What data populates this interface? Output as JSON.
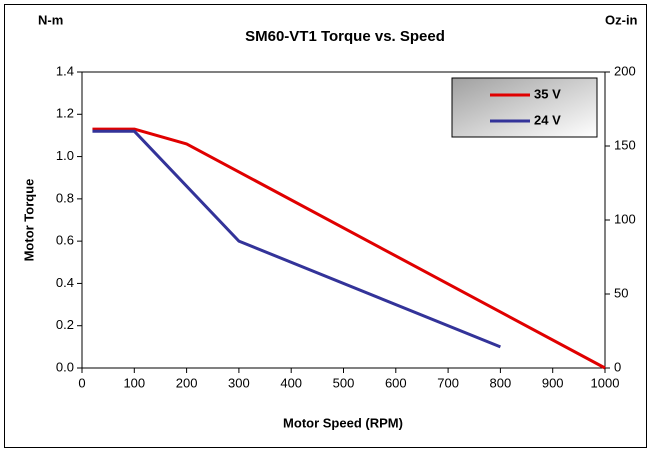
{
  "chart_data": {
    "type": "line",
    "title": "SM60-VT1 Torque vs. Speed",
    "xlabel": "Motor Speed (RPM)",
    "ylabel": "Motor Torque",
    "y_unit": "N-m",
    "y2_unit": "Oz-in",
    "xlim": [
      0,
      1000
    ],
    "xticks": [
      0,
      100,
      200,
      300,
      400,
      500,
      600,
      700,
      800,
      900,
      1000
    ],
    "ylim": [
      0,
      1.4
    ],
    "yticks": [
      {
        "value": 0,
        "label": "0.0"
      },
      0.2,
      0.4,
      0.6,
      0.8,
      {
        "value": 1,
        "label": "1.0"
      },
      1.2,
      1.4
    ],
    "y2lim": [
      0,
      200
    ],
    "y2ticks": [
      0,
      50,
      100,
      150,
      200
    ],
    "grid": false,
    "legend": "upper right",
    "series": [
      {
        "name": "35 V",
        "color": "#e00000",
        "x": [
          20,
          100,
          200,
          1000
        ],
        "values": [
          1.13,
          1.13,
          1.06,
          0
        ]
      },
      {
        "name": "24 V",
        "color": "#333399",
        "x": [
          20,
          100,
          300,
          800
        ],
        "values": [
          1.12,
          1.12,
          0.6,
          0.1
        ]
      }
    ]
  }
}
